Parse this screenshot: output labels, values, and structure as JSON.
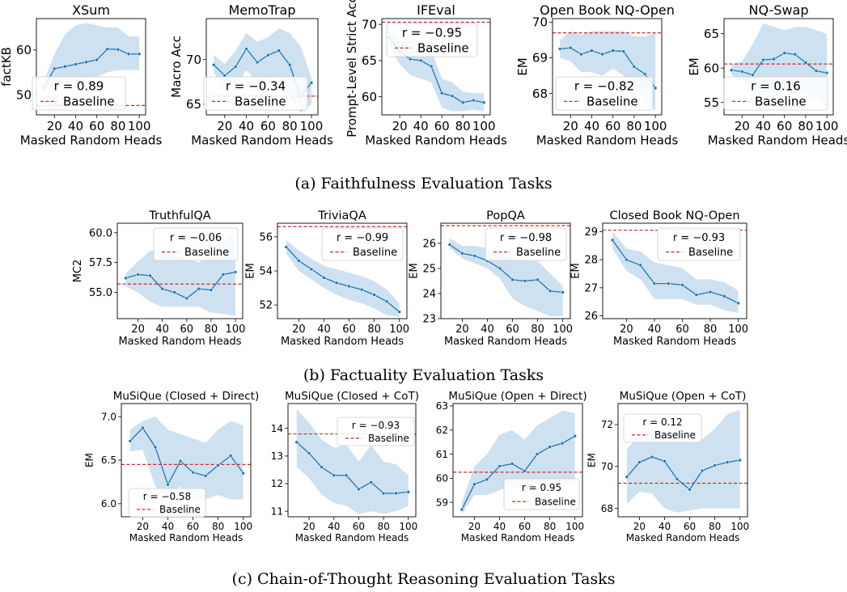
{
  "sections": [
    {
      "caption": "(a) Faithfulness Evaluation Tasks"
    },
    {
      "caption": "(b) Factuality Evaluation Tasks"
    },
    {
      "caption": "(c) Chain-of-Thought Reasoning Evaluation Tasks"
    }
  ],
  "legend_baseline": "Baseline",
  "colors": {
    "line": "#1f77b4",
    "band": "#c6dcee",
    "baseline": "#d62728"
  },
  "chart_data": [
    {
      "type": "line",
      "title": "XSum",
      "xlabel": "Masked Random Heads",
      "ylabel": "factKB",
      "x": [
        10,
        20,
        30,
        40,
        50,
        60,
        70,
        80,
        90,
        100
      ],
      "values": [
        51.5,
        55.8,
        56.3,
        56.8,
        57.3,
        57.8,
        60.2,
        60.1,
        59.1,
        59.1
      ],
      "band_low": [
        50.5,
        52,
        52.5,
        53,
        53.5,
        54,
        55,
        55.5,
        55.5,
        55.5
      ],
      "band_high": [
        53,
        59,
        63.5,
        65.5,
        66,
        65.5,
        65,
        65,
        63,
        63
      ],
      "baseline": 47.6,
      "r": "r = 0.89",
      "xlim": [
        3,
        106
      ],
      "ylim": [
        45.5,
        67
      ],
      "xticks": [
        20,
        40,
        60,
        80,
        100
      ],
      "yticks": [
        50,
        60
      ]
    },
    {
      "type": "line",
      "title": "MemoTrap",
      "xlabel": "Masked Random Heads",
      "ylabel": "Macro Acc",
      "x": [
        10,
        20,
        30,
        40,
        50,
        60,
        70,
        80,
        90,
        100
      ],
      "values": [
        69.4,
        68.2,
        69.2,
        71.2,
        69.7,
        70.5,
        71.0,
        69.4,
        65.8,
        67.4
      ],
      "band_low": [
        68.5,
        67,
        67,
        68.8,
        67.5,
        67.8,
        68,
        66,
        64,
        65
      ],
      "band_high": [
        70.5,
        69.5,
        71,
        73,
        72,
        72.5,
        73.5,
        73,
        71.5,
        68
      ],
      "baseline": 65.9,
      "r": "r = −0.34",
      "xlim": [
        3,
        106
      ],
      "ylim": [
        63.8,
        74.6
      ],
      "xticks": [
        20,
        40,
        60,
        80,
        100
      ],
      "yticks": [
        65,
        70
      ]
    },
    {
      "type": "line",
      "title": "IFEval",
      "xlabel": "Masked Random Heads",
      "ylabel": "Prompt-Level Strict Acc",
      "x": [
        10,
        20,
        30,
        40,
        50,
        60,
        70,
        80,
        90,
        100
      ],
      "values": [
        68.2,
        66.2,
        65.2,
        65.0,
        64.2,
        60.5,
        60.1,
        59.2,
        59.5,
        59.2
      ],
      "band_low": [
        67,
        64.5,
        63,
        62.5,
        62,
        58.5,
        58,
        58,
        58.2,
        58
      ],
      "band_high": [
        69,
        68,
        68.2,
        67.7,
        66.5,
        62.5,
        62,
        60.7,
        60.5,
        60.5
      ],
      "baseline": 70.3,
      "r": "r = −0.95",
      "xlim": [
        3,
        106
      ],
      "ylim": [
        57.5,
        70.8
      ],
      "xticks": [
        20,
        40,
        60,
        80,
        100
      ],
      "yticks": [
        60,
        65,
        70
      ]
    },
    {
      "type": "line",
      "title": "Open Book NQ-Open",
      "xlabel": "Masked Random Heads",
      "ylabel": "EM",
      "x": [
        10,
        20,
        30,
        40,
        50,
        60,
        70,
        80,
        90,
        100
      ],
      "values": [
        69.25,
        69.28,
        69.1,
        69.2,
        69.1,
        69.2,
        69.18,
        68.75,
        68.55,
        68.15
      ],
      "band_low": [
        69.0,
        68.9,
        68.6,
        68.6,
        68.5,
        68.7,
        68.5,
        68.1,
        67.9,
        67.5
      ],
      "band_high": [
        69.5,
        69.75,
        69.65,
        69.75,
        69.75,
        69.75,
        69.75,
        69.6,
        69.6,
        69.7
      ],
      "baseline": 69.7,
      "r": "r = −0.82",
      "xlim": [
        3,
        106
      ],
      "ylim": [
        67.4,
        70.1
      ],
      "xticks": [
        20,
        40,
        60,
        80,
        100
      ],
      "yticks": [
        68,
        69,
        70
      ]
    },
    {
      "type": "line",
      "title": "NQ-Swap",
      "xlabel": "Masked Random Heads",
      "ylabel": "EM",
      "x": [
        10,
        20,
        30,
        40,
        50,
        60,
        70,
        80,
        90,
        100
      ],
      "values": [
        59.7,
        59.5,
        59.0,
        61.2,
        61.3,
        62.2,
        62.0,
        60.8,
        59.6,
        59.3
      ],
      "band_low": [
        59,
        58,
        56,
        56,
        56.5,
        57,
        57,
        56,
        55.5,
        54
      ],
      "band_high": [
        60.5,
        61,
        63.5,
        66.5,
        66,
        65.5,
        66,
        66,
        65.5,
        65
      ],
      "baseline": 60.6,
      "r": "r = 0.16",
      "xlim": [
        3,
        106
      ],
      "ylim": [
        53.2,
        67.2
      ],
      "xticks": [
        20,
        40,
        60,
        80,
        100
      ],
      "yticks": [
        55,
        60,
        65
      ]
    },
    {
      "type": "line",
      "title": "TruthfulQA",
      "xlabel": "Masked Random Heads",
      "ylabel": "MC2",
      "x": [
        10,
        20,
        30,
        40,
        50,
        60,
        70,
        80,
        90,
        100
      ],
      "values": [
        56.2,
        56.5,
        56.4,
        55.3,
        55.0,
        54.5,
        55.3,
        55.2,
        56.5,
        56.7
      ],
      "band_low": [
        55.5,
        55,
        54.2,
        53.8,
        53.8,
        53.8,
        53.8,
        53.3,
        53.2,
        53.0
      ],
      "band_high": [
        56.6,
        57.6,
        58.5,
        58.5,
        58.2,
        57.8,
        57.5,
        58.4,
        59.4,
        60.0
      ],
      "baseline": 55.7,
      "r": "r = −0.06",
      "xlim": [
        3,
        106
      ],
      "ylim": [
        52.8,
        60.8
      ],
      "xticks": [
        20,
        40,
        60,
        80,
        100
      ],
      "yticks": [
        55.0,
        57.5,
        60.0
      ]
    },
    {
      "type": "line",
      "title": "TriviaQA",
      "xlabel": "Masked Random Heads",
      "ylabel": "EM",
      "x": [
        10,
        20,
        30,
        40,
        50,
        60,
        70,
        80,
        90,
        100
      ],
      "values": [
        55.4,
        54.6,
        54.1,
        53.6,
        53.3,
        53.1,
        52.9,
        52.6,
        52.2,
        51.6
      ],
      "band_low": [
        55.0,
        54.0,
        53.5,
        53.0,
        52.6,
        52.3,
        52.1,
        51.8,
        51.4,
        51.3
      ],
      "band_high": [
        55.8,
        55.2,
        54.7,
        54.3,
        54.1,
        53.9,
        53.7,
        53.4,
        52.9,
        52.1
      ],
      "baseline": 56.6,
      "r": "r = −0.99",
      "xlim": [
        3,
        106
      ],
      "ylim": [
        51.2,
        56.8
      ],
      "xticks": [
        20,
        40,
        60,
        80,
        100
      ],
      "yticks": [
        52,
        54,
        56
      ]
    },
    {
      "type": "line",
      "title": "PopQA",
      "xlabel": "Masked Random Heads",
      "ylabel": "EM",
      "x": [
        10,
        20,
        30,
        40,
        50,
        60,
        70,
        80,
        90,
        100
      ],
      "values": [
        25.95,
        25.6,
        25.5,
        25.3,
        25.0,
        24.55,
        24.5,
        24.55,
        24.1,
        24.05
      ],
      "band_low": [
        25.8,
        25.4,
        25.2,
        25.0,
        24.6,
        23.8,
        23.5,
        23.3,
        23.1,
        23.1
      ],
      "band_high": [
        26.2,
        25.9,
        25.9,
        25.8,
        25.6,
        25.4,
        25.3,
        25.3,
        24.8,
        24.3
      ],
      "baseline": 26.7,
      "r": "r = −0.98",
      "xlim": [
        3,
        106
      ],
      "ylim": [
        23.0,
        26.8
      ],
      "xticks": [
        20,
        40,
        60,
        80,
        100
      ],
      "yticks": [
        23,
        24,
        25,
        26
      ]
    },
    {
      "type": "line",
      "title": "Closed Book NQ-Open",
      "xlabel": "Masked Random Heads",
      "ylabel": "EM",
      "x": [
        10,
        20,
        30,
        40,
        50,
        60,
        70,
        80,
        90,
        100
      ],
      "values": [
        28.7,
        28.0,
        27.8,
        27.15,
        27.15,
        27.1,
        26.75,
        26.85,
        26.7,
        26.45
      ],
      "band_low": [
        28.4,
        27.6,
        27.3,
        26.6,
        26.6,
        26.6,
        26.4,
        26.4,
        26.2,
        26.1
      ],
      "band_high": [
        29.0,
        28.4,
        28.3,
        27.9,
        27.8,
        27.7,
        27.3,
        27.3,
        27.2,
        26.9
      ],
      "baseline": 29.05,
      "r": "r = −0.93",
      "xlim": [
        3,
        106
      ],
      "ylim": [
        25.9,
        29.3
      ],
      "xticks": [
        20,
        40,
        60,
        80,
        100
      ],
      "yticks": [
        26,
        27,
        28,
        29
      ]
    },
    {
      "type": "line",
      "title": "MuSiQue (Closed + Direct)",
      "xlabel": "Masked Random Heads",
      "ylabel": "EM",
      "x": [
        10,
        20,
        30,
        40,
        50,
        60,
        70,
        80,
        90,
        100
      ],
      "values": [
        6.72,
        6.87,
        6.65,
        6.22,
        6.49,
        6.36,
        6.32,
        6.44,
        6.55,
        6.35
      ],
      "band_low": [
        6.6,
        6.62,
        6.2,
        6.05,
        6.2,
        6.05,
        6.05,
        6.1,
        6.05,
        6.05
      ],
      "band_high": [
        6.85,
        6.95,
        7.0,
        6.85,
        6.8,
        6.75,
        6.7,
        6.85,
        6.95,
        6.9
      ],
      "baseline": 6.45,
      "r": "r = −0.58",
      "xlim": [
        3,
        106
      ],
      "ylim": [
        5.85,
        7.15
      ],
      "xticks": [
        20,
        40,
        60,
        80,
        100
      ],
      "yticks": [
        6.0,
        6.5,
        7.0
      ]
    },
    {
      "type": "line",
      "title": "MuSiQue (Closed + CoT)",
      "xlabel": "Masked Random Heads",
      "ylabel": "",
      "x": [
        10,
        20,
        30,
        40,
        50,
        60,
        70,
        80,
        90,
        100
      ],
      "values": [
        13.5,
        13.1,
        12.6,
        12.3,
        12.3,
        11.8,
        12.05,
        11.65,
        11.65,
        11.7
      ],
      "band_low": [
        12.6,
        12.2,
        11.6,
        11.3,
        11.2,
        10.9,
        11.0,
        10.9,
        11.0,
        11.2
      ],
      "band_high": [
        14.7,
        14.2,
        13.6,
        13.3,
        13.4,
        12.8,
        13.4,
        12.8,
        12.7,
        12.3
      ],
      "baseline": 13.8,
      "r": "r = −0.93",
      "xlim": [
        3,
        106
      ],
      "ylim": [
        10.8,
        14.9
      ],
      "xticks": [
        20,
        40,
        60,
        80,
        100
      ],
      "yticks": [
        11,
        12,
        13,
        14
      ]
    },
    {
      "type": "line",
      "title": "MuSiQue (Open + Direct)",
      "xlabel": "Masked Random Heads",
      "ylabel": "",
      "x": [
        10,
        20,
        30,
        40,
        50,
        60,
        70,
        80,
        90,
        100
      ],
      "values": [
        58.7,
        59.75,
        59.95,
        60.5,
        60.6,
        60.3,
        61.0,
        61.3,
        61.45,
        61.75
      ],
      "band_low": [
        58.5,
        59.3,
        59.3,
        59.5,
        59.7,
        59.5,
        59.7,
        59.8,
        59.7,
        59.9
      ],
      "band_high": [
        59.0,
        60.5,
        61.0,
        61.8,
        62.0,
        61.6,
        62.2,
        62.5,
        62.8,
        62.7
      ],
      "baseline": 60.25,
      "r": "r = 0.95",
      "xlim": [
        3,
        106
      ],
      "ylim": [
        58.4,
        63.1
      ],
      "xticks": [
        20,
        40,
        60,
        80,
        100
      ],
      "yticks": [
        59,
        60,
        61,
        62,
        63
      ]
    },
    {
      "type": "line",
      "title": "MuSiQue (Open + CoT)",
      "xlabel": "Masked Random Heads",
      "ylabel": "EM",
      "x": [
        10,
        20,
        30,
        40,
        50,
        60,
        70,
        80,
        90,
        100
      ],
      "values": [
        69.5,
        70.2,
        70.45,
        70.25,
        69.4,
        68.9,
        69.8,
        70.05,
        70.2,
        70.3
      ],
      "band_low": [
        68.2,
        68.8,
        68.7,
        68.0,
        67.8,
        67.9,
        68.0,
        68.0,
        68.0,
        68.0
      ],
      "band_high": [
        70.8,
        71.5,
        71.8,
        71.7,
        71.6,
        71.1,
        71.3,
        71.8,
        72.5,
        72.7
      ],
      "baseline": 69.2,
      "r": "r = 0.12",
      "xlim": [
        3,
        106
      ],
      "ylim": [
        67.6,
        73.0
      ],
      "xticks": [
        20,
        40,
        60,
        80,
        100
      ],
      "yticks": [
        68,
        70,
        72
      ]
    }
  ]
}
